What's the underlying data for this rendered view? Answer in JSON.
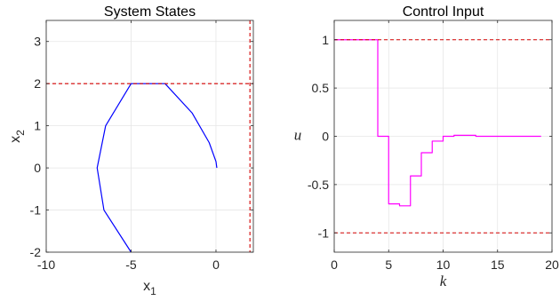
{
  "chart_data": [
    {
      "type": "line",
      "title": "System States",
      "xlabel": "x",
      "xlabel_sub": "1",
      "ylabel": "x",
      "ylabel_sub": "2",
      "xlim": [
        -10,
        2.2
      ],
      "ylim": [
        -2,
        3.5
      ],
      "xticks": [
        -10,
        -5,
        0
      ],
      "xtick_labels": [
        "-10",
        "-5",
        "0"
      ],
      "yticks": [
        -2,
        -1,
        0,
        1,
        2,
        3
      ],
      "ytick_labels": [
        "-2",
        "-1",
        "0",
        "1",
        "2",
        "3"
      ],
      "grid": true,
      "series": [
        {
          "color": "#0000ff",
          "x": [
            -5.0,
            -6.6,
            -7.0,
            -6.5,
            -5.0,
            -3.0,
            -1.4,
            -0.4,
            0.0,
            0.05
          ],
          "y": [
            -2.0,
            -1.0,
            0.0,
            1.0,
            2.0,
            2.0,
            1.3,
            0.6,
            0.15,
            0.0
          ]
        }
      ],
      "constraint_lines": [
        {
          "orientation": "horizontal",
          "value": 2,
          "color": "#d40000",
          "style": "dashed"
        },
        {
          "orientation": "vertical",
          "value": 2,
          "color": "#d40000",
          "style": "dashed"
        }
      ]
    },
    {
      "type": "line",
      "title": "Control Input",
      "xlabel": "k",
      "ylabel": "u",
      "xlim": [
        0,
        20
      ],
      "ylim": [
        -1.2,
        1.2
      ],
      "xticks": [
        0,
        5,
        10,
        15,
        20
      ],
      "xtick_labels": [
        "0",
        "5",
        "10",
        "15",
        "20"
      ],
      "yticks": [
        -1,
        -0.5,
        0,
        0.5,
        1
      ],
      "ytick_labels": [
        "-1",
        "-0.5",
        "0",
        "0.5",
        "1"
      ],
      "grid": true,
      "series": [
        {
          "color": "#ff00ff",
          "style": "stairs",
          "k": [
            0,
            1,
            2,
            3,
            4,
            5,
            6,
            7,
            8,
            9,
            10,
            11,
            12,
            13,
            14,
            15,
            16,
            17,
            18,
            19
          ],
          "u": [
            1,
            1,
            1,
            1,
            0,
            -0.7,
            -0.72,
            -0.41,
            -0.17,
            -0.05,
            0.0,
            0.01,
            0.01,
            0.0,
            0.0,
            0.0,
            0.0,
            0.0,
            0.0,
            0.0
          ]
        }
      ],
      "constraint_lines": [
        {
          "orientation": "horizontal",
          "value": 1,
          "color": "#d40000",
          "style": "dashed"
        },
        {
          "orientation": "horizontal",
          "value": -1,
          "color": "#d40000",
          "style": "dashed"
        }
      ]
    }
  ]
}
